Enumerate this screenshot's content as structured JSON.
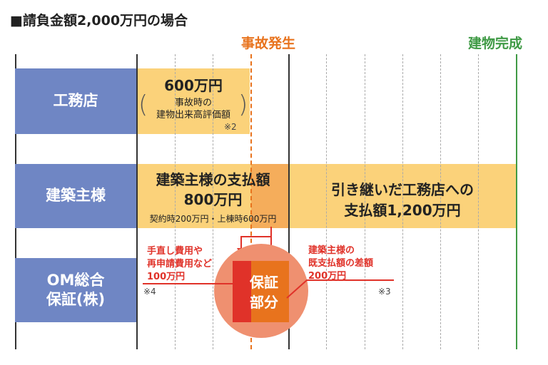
{
  "title": "■請負金額2,000万円の場合",
  "events": {
    "accident": "事故発生",
    "completion": "建物完成"
  },
  "rows": {
    "builder": "工務店",
    "owner": "建築主様",
    "om": "OM総合\n保証(株)"
  },
  "builder_bar": {
    "amount": "600万円",
    "note_line1": "事故時の",
    "note_line2": "建物出来高評価額",
    "ref": "※2",
    "paren_open": "(",
    "paren_close": ")"
  },
  "owner_bar": {
    "paid_title": "建築主様の支払額",
    "paid_amount": "800万円",
    "paid_detail": "契約時200万円・上棟時600万円",
    "new_title": "引き継いだ工務店への",
    "new_amount": "支払額1,200万円"
  },
  "guarantee": {
    "left_line1": "手直し費用や",
    "left_line2": "再申請費用など",
    "left_line3": "100万円",
    "left_ref": "※4",
    "right_line1": "建築主様の",
    "right_line2": "既支払額の差額",
    "right_line3": "200万円",
    "right_ref": "※3",
    "circle_line1": "保証",
    "circle_line2": "部分"
  },
  "colors": {
    "row_label": "#6f86c4",
    "bar": "#fbd27a",
    "bar_dark": "#f5ad5b",
    "accent_red": "#e03229",
    "circle": "#ef9070",
    "accident": "#e8731d",
    "completion": "#3f9a45"
  }
}
